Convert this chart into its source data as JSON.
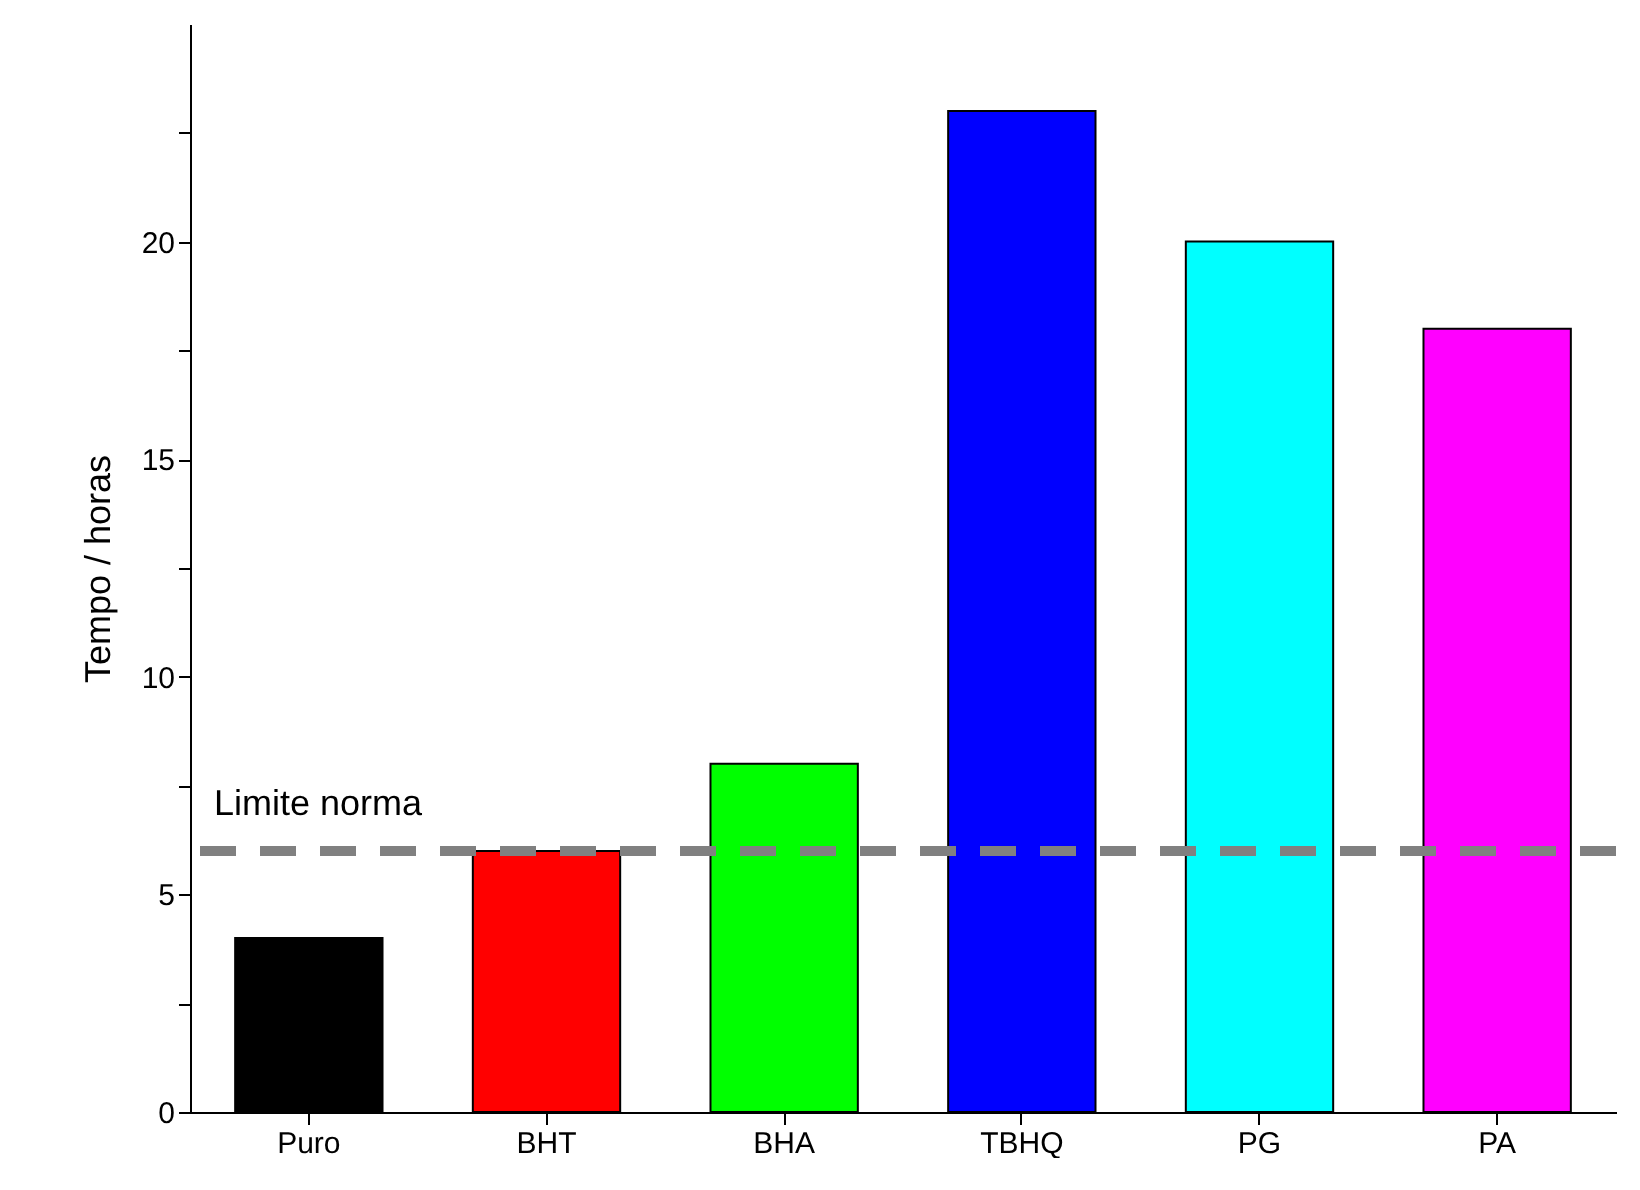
{
  "chart_data": {
    "type": "bar",
    "ylabel": "Tempo / horas",
    "categories": [
      "Puro",
      "BHT",
      "BHA",
      "TBHQ",
      "PG",
      "PA"
    ],
    "values": [
      4,
      6,
      8,
      23,
      20,
      18
    ],
    "colors": [
      "#000000",
      "#ff0000",
      "#00ff00",
      "#0000ff",
      "#00ffff",
      "#ff00ff"
    ],
    "ylim": [
      0,
      25
    ],
    "yticks": [
      0,
      {
        "value": 2.5,
        "label": null
      },
      5,
      {
        "value": 7.5,
        "label": null
      },
      10,
      {
        "value": 12.5,
        "label": null
      },
      15,
      {
        "value": 17.5,
        "label": null
      },
      20,
      {
        "value": 22.5,
        "label": null
      }
    ],
    "ref_lines": [
      {
        "axis": "y",
        "value": 6,
        "label": "Limite norma",
        "color": "#808080",
        "line_style": "dashed"
      }
    ],
    "grid": false
  }
}
